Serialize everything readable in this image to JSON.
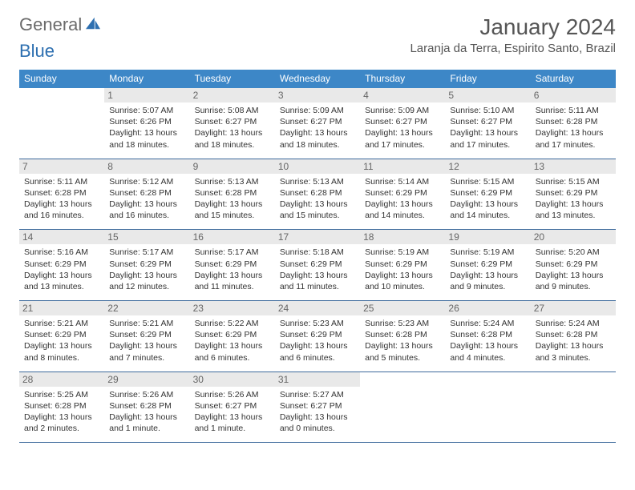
{
  "brand": {
    "name1": "General",
    "name2": "Blue",
    "icon_color": "#2d6fb0",
    "name2_color": "#2d6fb0"
  },
  "title": "January 2024",
  "location": "Laranja da Terra, Espirito Santo, Brazil",
  "colors": {
    "header_bg": "#3d87c7",
    "header_text": "#ffffff",
    "row_border": "#3d6a9c",
    "daynum_bg": "#e9e9e9",
    "daynum_text": "#666666",
    "body_text": "#333333",
    "cell_fontsize": 10.5
  },
  "weekdays": [
    "Sunday",
    "Monday",
    "Tuesday",
    "Wednesday",
    "Thursday",
    "Friday",
    "Saturday"
  ],
  "weeks": [
    [
      {
        "day": "",
        "lines": [
          "",
          "",
          "",
          ""
        ]
      },
      {
        "day": "1",
        "lines": [
          "Sunrise: 5:07 AM",
          "Sunset: 6:26 PM",
          "Daylight: 13 hours",
          "and 18 minutes."
        ]
      },
      {
        "day": "2",
        "lines": [
          "Sunrise: 5:08 AM",
          "Sunset: 6:27 PM",
          "Daylight: 13 hours",
          "and 18 minutes."
        ]
      },
      {
        "day": "3",
        "lines": [
          "Sunrise: 5:09 AM",
          "Sunset: 6:27 PM",
          "Daylight: 13 hours",
          "and 18 minutes."
        ]
      },
      {
        "day": "4",
        "lines": [
          "Sunrise: 5:09 AM",
          "Sunset: 6:27 PM",
          "Daylight: 13 hours",
          "and 17 minutes."
        ]
      },
      {
        "day": "5",
        "lines": [
          "Sunrise: 5:10 AM",
          "Sunset: 6:27 PM",
          "Daylight: 13 hours",
          "and 17 minutes."
        ]
      },
      {
        "day": "6",
        "lines": [
          "Sunrise: 5:11 AM",
          "Sunset: 6:28 PM",
          "Daylight: 13 hours",
          "and 17 minutes."
        ]
      }
    ],
    [
      {
        "day": "7",
        "lines": [
          "Sunrise: 5:11 AM",
          "Sunset: 6:28 PM",
          "Daylight: 13 hours",
          "and 16 minutes."
        ]
      },
      {
        "day": "8",
        "lines": [
          "Sunrise: 5:12 AM",
          "Sunset: 6:28 PM",
          "Daylight: 13 hours",
          "and 16 minutes."
        ]
      },
      {
        "day": "9",
        "lines": [
          "Sunrise: 5:13 AM",
          "Sunset: 6:28 PM",
          "Daylight: 13 hours",
          "and 15 minutes."
        ]
      },
      {
        "day": "10",
        "lines": [
          "Sunrise: 5:13 AM",
          "Sunset: 6:28 PM",
          "Daylight: 13 hours",
          "and 15 minutes."
        ]
      },
      {
        "day": "11",
        "lines": [
          "Sunrise: 5:14 AM",
          "Sunset: 6:29 PM",
          "Daylight: 13 hours",
          "and 14 minutes."
        ]
      },
      {
        "day": "12",
        "lines": [
          "Sunrise: 5:15 AM",
          "Sunset: 6:29 PM",
          "Daylight: 13 hours",
          "and 14 minutes."
        ]
      },
      {
        "day": "13",
        "lines": [
          "Sunrise: 5:15 AM",
          "Sunset: 6:29 PM",
          "Daylight: 13 hours",
          "and 13 minutes."
        ]
      }
    ],
    [
      {
        "day": "14",
        "lines": [
          "Sunrise: 5:16 AM",
          "Sunset: 6:29 PM",
          "Daylight: 13 hours",
          "and 13 minutes."
        ]
      },
      {
        "day": "15",
        "lines": [
          "Sunrise: 5:17 AM",
          "Sunset: 6:29 PM",
          "Daylight: 13 hours",
          "and 12 minutes."
        ]
      },
      {
        "day": "16",
        "lines": [
          "Sunrise: 5:17 AM",
          "Sunset: 6:29 PM",
          "Daylight: 13 hours",
          "and 11 minutes."
        ]
      },
      {
        "day": "17",
        "lines": [
          "Sunrise: 5:18 AM",
          "Sunset: 6:29 PM",
          "Daylight: 13 hours",
          "and 11 minutes."
        ]
      },
      {
        "day": "18",
        "lines": [
          "Sunrise: 5:19 AM",
          "Sunset: 6:29 PM",
          "Daylight: 13 hours",
          "and 10 minutes."
        ]
      },
      {
        "day": "19",
        "lines": [
          "Sunrise: 5:19 AM",
          "Sunset: 6:29 PM",
          "Daylight: 13 hours",
          "and 9 minutes."
        ]
      },
      {
        "day": "20",
        "lines": [
          "Sunrise: 5:20 AM",
          "Sunset: 6:29 PM",
          "Daylight: 13 hours",
          "and 9 minutes."
        ]
      }
    ],
    [
      {
        "day": "21",
        "lines": [
          "Sunrise: 5:21 AM",
          "Sunset: 6:29 PM",
          "Daylight: 13 hours",
          "and 8 minutes."
        ]
      },
      {
        "day": "22",
        "lines": [
          "Sunrise: 5:21 AM",
          "Sunset: 6:29 PM",
          "Daylight: 13 hours",
          "and 7 minutes."
        ]
      },
      {
        "day": "23",
        "lines": [
          "Sunrise: 5:22 AM",
          "Sunset: 6:29 PM",
          "Daylight: 13 hours",
          "and 6 minutes."
        ]
      },
      {
        "day": "24",
        "lines": [
          "Sunrise: 5:23 AM",
          "Sunset: 6:29 PM",
          "Daylight: 13 hours",
          "and 6 minutes."
        ]
      },
      {
        "day": "25",
        "lines": [
          "Sunrise: 5:23 AM",
          "Sunset: 6:28 PM",
          "Daylight: 13 hours",
          "and 5 minutes."
        ]
      },
      {
        "day": "26",
        "lines": [
          "Sunrise: 5:24 AM",
          "Sunset: 6:28 PM",
          "Daylight: 13 hours",
          "and 4 minutes."
        ]
      },
      {
        "day": "27",
        "lines": [
          "Sunrise: 5:24 AM",
          "Sunset: 6:28 PM",
          "Daylight: 13 hours",
          "and 3 minutes."
        ]
      }
    ],
    [
      {
        "day": "28",
        "lines": [
          "Sunrise: 5:25 AM",
          "Sunset: 6:28 PM",
          "Daylight: 13 hours",
          "and 2 minutes."
        ]
      },
      {
        "day": "29",
        "lines": [
          "Sunrise: 5:26 AM",
          "Sunset: 6:28 PM",
          "Daylight: 13 hours",
          "and 1 minute."
        ]
      },
      {
        "day": "30",
        "lines": [
          "Sunrise: 5:26 AM",
          "Sunset: 6:27 PM",
          "Daylight: 13 hours",
          "and 1 minute."
        ]
      },
      {
        "day": "31",
        "lines": [
          "Sunrise: 5:27 AM",
          "Sunset: 6:27 PM",
          "Daylight: 13 hours",
          "and 0 minutes."
        ]
      },
      {
        "day": "",
        "lines": [
          "",
          "",
          "",
          ""
        ]
      },
      {
        "day": "",
        "lines": [
          "",
          "",
          "",
          ""
        ]
      },
      {
        "day": "",
        "lines": [
          "",
          "",
          "",
          ""
        ]
      }
    ]
  ]
}
